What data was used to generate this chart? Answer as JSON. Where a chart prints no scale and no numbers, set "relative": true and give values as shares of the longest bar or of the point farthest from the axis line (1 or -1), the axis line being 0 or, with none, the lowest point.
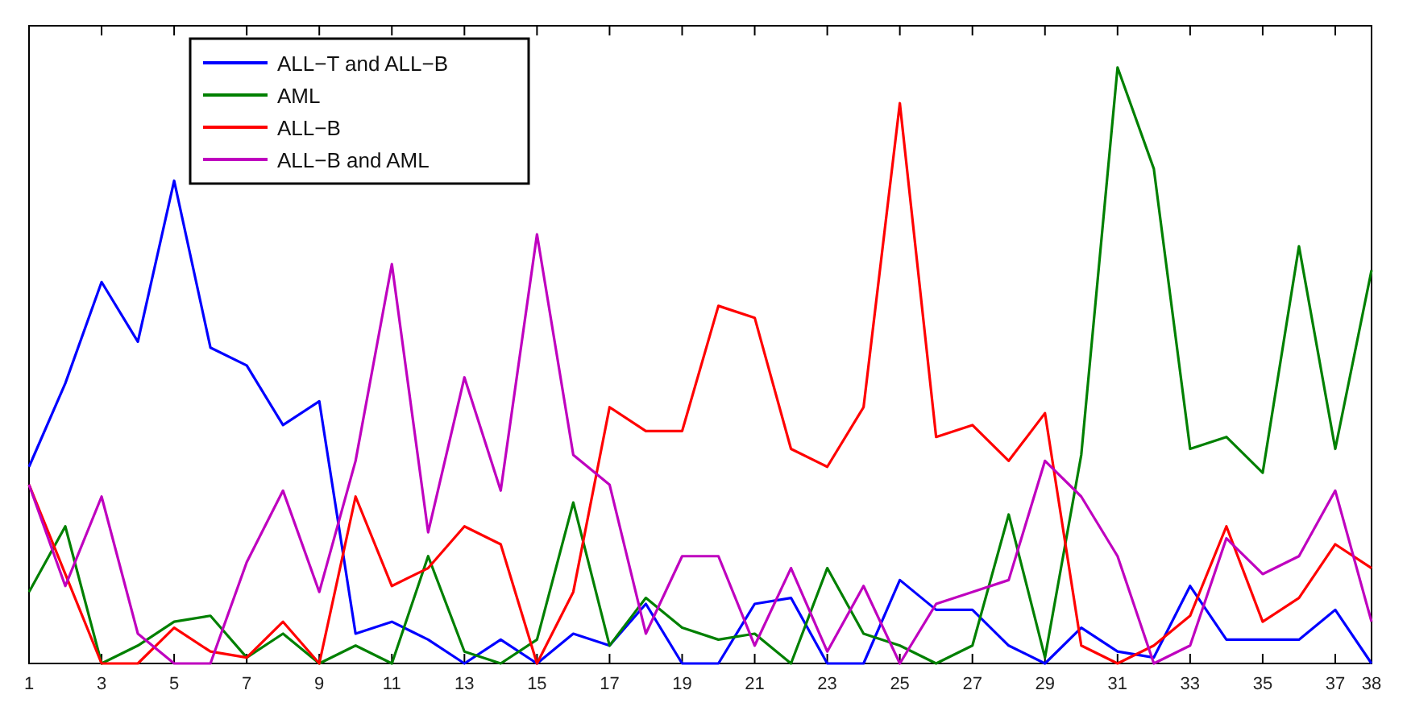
{
  "chart_data": {
    "type": "line",
    "relative": true,
    "legend": "top left",
    "line_style": "solid",
    "marker": "none",
    "x": [
      1,
      2,
      3,
      4,
      5,
      6,
      7,
      8,
      9,
      10,
      11,
      12,
      13,
      14,
      15,
      16,
      17,
      18,
      19,
      20,
      21,
      22,
      23,
      24,
      25,
      26,
      27,
      28,
      29,
      30,
      31,
      32,
      33,
      34,
      35,
      36,
      37,
      38
    ],
    "xlim": [
      1,
      38
    ],
    "xticks": [
      1,
      3,
      5,
      7,
      9,
      11,
      13,
      15,
      17,
      19,
      21,
      23,
      25,
      27,
      29,
      31,
      33,
      35,
      37,
      38
    ],
    "series": [
      {
        "name": "ALL−T and ALL−B",
        "color": "#0000ff",
        "values": [
          0.33,
          0.47,
          0.64,
          0.54,
          0.81,
          0.53,
          0.5,
          0.4,
          0.44,
          0.05,
          0.07,
          0.04,
          0,
          0.04,
          0,
          0.05,
          0.03,
          0.1,
          0,
          0,
          0.1,
          0.11,
          0,
          0,
          0.14,
          0.09,
          0.09,
          0.03,
          0,
          0.06,
          0.02,
          0.01,
          0.13,
          0.04,
          0.04,
          0.04,
          0.09,
          0
        ]
      },
      {
        "name": "AML",
        "color": "#008000",
        "values": [
          0.12,
          0.23,
          0,
          0.03,
          0.07,
          0.08,
          0.01,
          0.05,
          0,
          0.03,
          0,
          0.18,
          0.02,
          0,
          0.04,
          0.27,
          0.03,
          0.11,
          0.06,
          0.04,
          0.05,
          0,
          0.16,
          0.05,
          0.03,
          0,
          0.03,
          0.25,
          0.01,
          0.35,
          1,
          0.83,
          0.36,
          0.38,
          0.32,
          0.7,
          0.36,
          0.66
        ]
      },
      {
        "name": "ALL−B",
        "color": "#ff0000",
        "values": [
          0.3,
          0.15,
          0,
          0,
          0.06,
          0.02,
          0.01,
          0.07,
          0,
          0.28,
          0.13,
          0.16,
          0.23,
          0.2,
          0,
          0.12,
          0.43,
          0.39,
          0.39,
          0.6,
          0.58,
          0.36,
          0.33,
          0.43,
          0.94,
          0.38,
          0.4,
          0.34,
          0.42,
          0.03,
          0,
          0.03,
          0.08,
          0.23,
          0.07,
          0.11,
          0.2,
          0.16
        ]
      },
      {
        "name": "ALL−B and AML",
        "color": "#bf00bf",
        "values": [
          0.3,
          0.13,
          0.28,
          0.05,
          0,
          0,
          0.17,
          0.29,
          0.12,
          0.34,
          0.67,
          0.22,
          0.48,
          0.29,
          0.72,
          0.35,
          0.3,
          0.05,
          0.18,
          0.18,
          0.03,
          0.16,
          0.02,
          0.13,
          0,
          0.1,
          0.12,
          0.14,
          0.34,
          0.28,
          0.18,
          0,
          0.03,
          0.21,
          0.15,
          0.18,
          0.29,
          0.07
        ]
      }
    ]
  }
}
